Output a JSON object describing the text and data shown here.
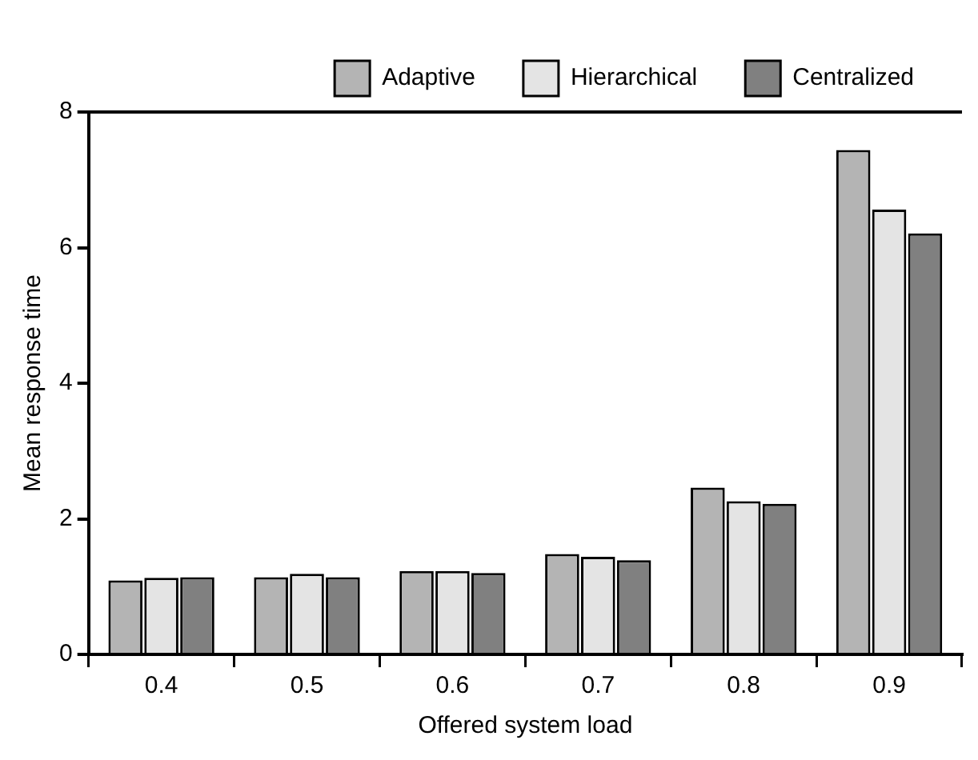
{
  "chart_data": {
    "type": "bar",
    "xlabel": "Offered system load",
    "ylabel": "Mean response time",
    "categories": [
      "0.4",
      "0.5",
      "0.6",
      "0.7",
      "0.8",
      "0.9"
    ],
    "series": [
      {
        "name": "Adaptive",
        "color": "#b4b4b4",
        "values": [
          1.09,
          1.14,
          1.23,
          1.48,
          2.46,
          7.44
        ]
      },
      {
        "name": "Hierarchical",
        "color": "#e4e4e4",
        "values": [
          1.13,
          1.19,
          1.23,
          1.44,
          2.26,
          6.56
        ]
      },
      {
        "name": "Centralized",
        "color": "#808080",
        "values": [
          1.14,
          1.14,
          1.2,
          1.39,
          2.22,
          6.21
        ]
      }
    ],
    "ylim": [
      0,
      8
    ],
    "yticks": [
      0,
      2,
      4,
      6,
      8
    ],
    "grid": false,
    "legend": "top"
  }
}
